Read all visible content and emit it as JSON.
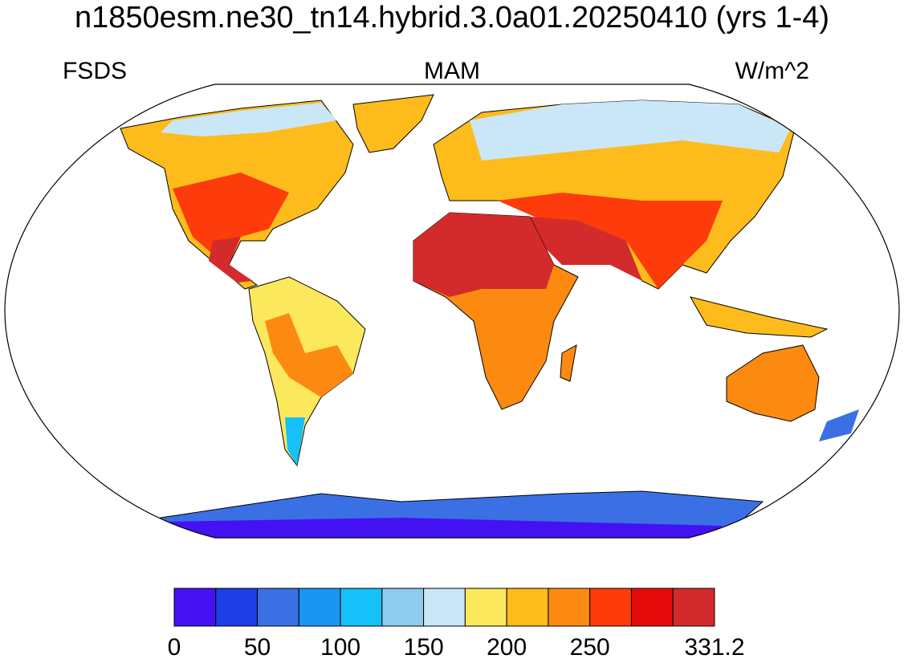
{
  "map": {
    "title": "n1850esm.ne30_tn14.hybrid.3.0a01.20250410 (yrs 1-4)",
    "left_label": "FSDS",
    "center_label": "MAM",
    "right_label": "W/m^2",
    "colorbar": {
      "levels": [
        0,
        25,
        50,
        75,
        100,
        125,
        150,
        175,
        200,
        225,
        250,
        275,
        300,
        331.2
      ],
      "colors": [
        "#4412f2",
        "#1f3de6",
        "#3a70e4",
        "#1b95f4",
        "#16c0f8",
        "#8ecbef",
        "#c9e7f7",
        "#fbe85c",
        "#fdbb1c",
        "#fc8a10",
        "#fd3b0b",
        "#e50b0b",
        "#d32b2b"
      ],
      "ticks": [
        0,
        50,
        100,
        150,
        200,
        250,
        331.2
      ]
    }
  }
}
